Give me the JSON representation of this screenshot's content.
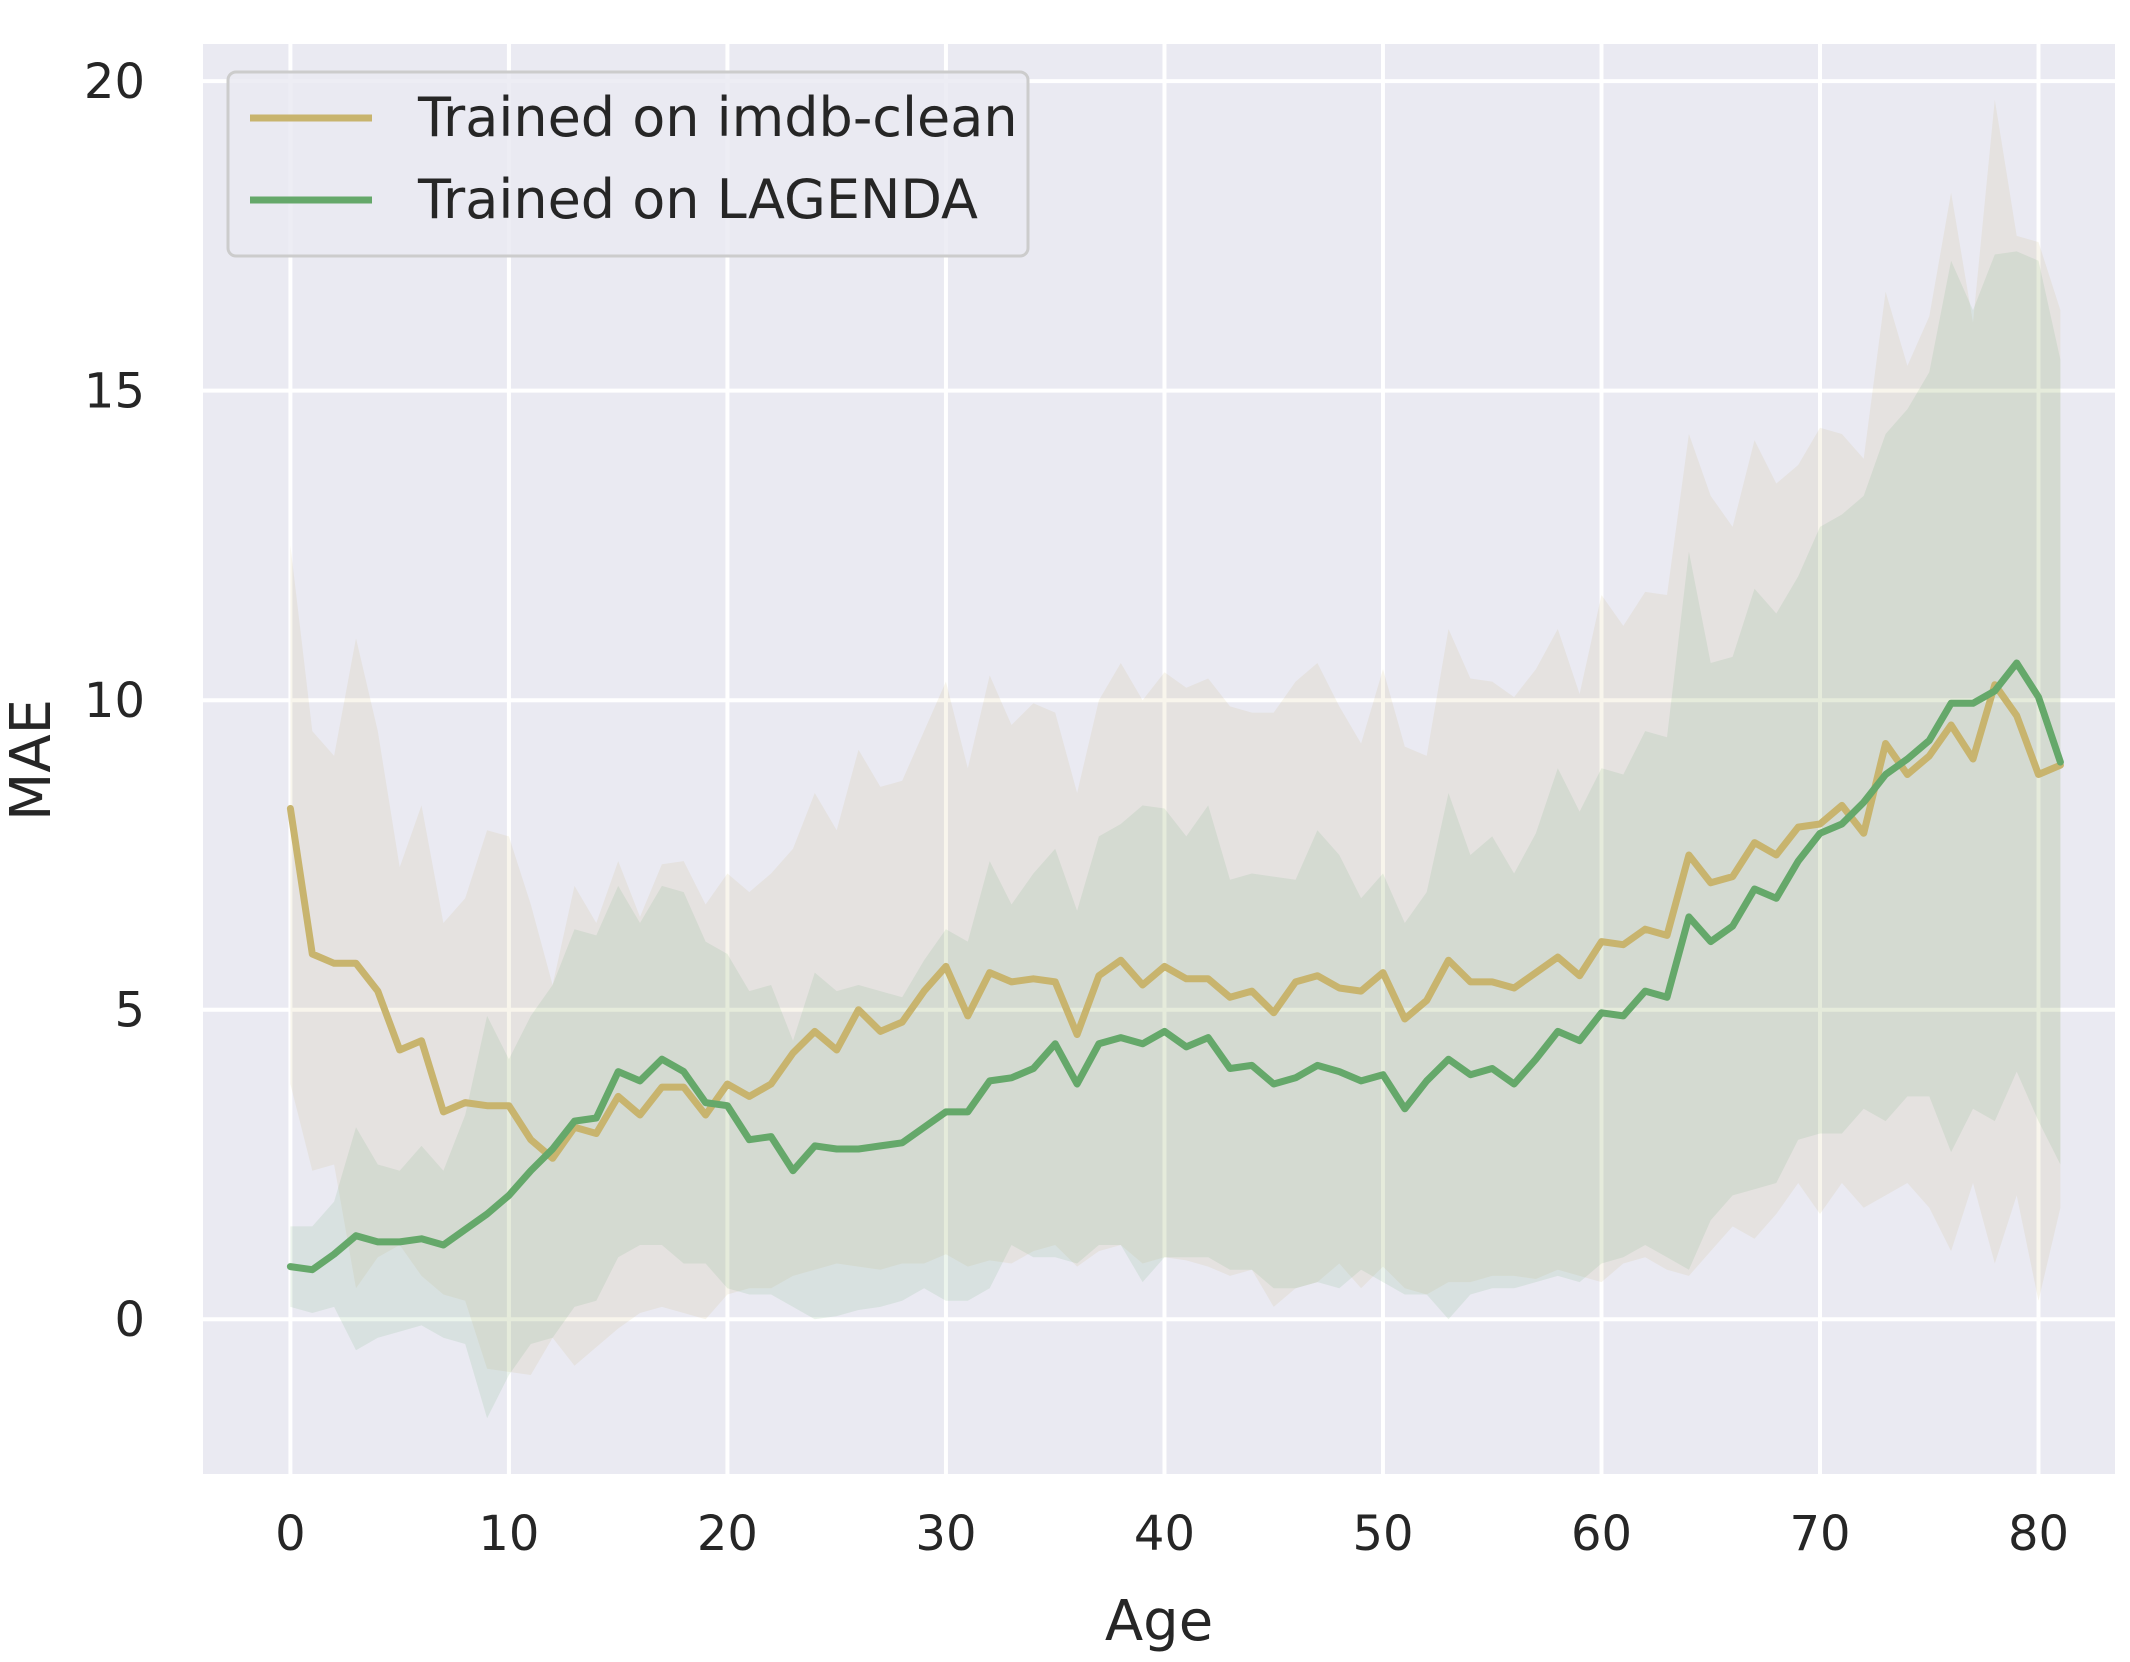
{
  "chart_data": {
    "type": "line",
    "xlabel": "Age",
    "ylabel": "MAE",
    "xlim": [
      -4,
      83.5
    ],
    "ylim": [
      -2.5,
      20.6
    ],
    "xticks": [
      0,
      10,
      20,
      30,
      40,
      50,
      60,
      70,
      80
    ],
    "yticks": [
      0,
      5,
      10,
      15,
      20
    ],
    "grid": true,
    "legend_position": "top-left",
    "series": [
      {
        "name": "Trained on imdb-clean",
        "color": "#c8b46e",
        "x": [
          0,
          1,
          2,
          3,
          4,
          5,
          6,
          7,
          8,
          9,
          10,
          11,
          12,
          13,
          14,
          15,
          16,
          17,
          18,
          19,
          20,
          21,
          22,
          23,
          24,
          25,
          26,
          27,
          28,
          29,
          30,
          31,
          32,
          33,
          34,
          35,
          36,
          37,
          38,
          39,
          40,
          41,
          42,
          43,
          44,
          45,
          46,
          47,
          48,
          49,
          50,
          51,
          52,
          53,
          54,
          55,
          56,
          57,
          58,
          59,
          60,
          61,
          62,
          63,
          64,
          65,
          66,
          67,
          68,
          69,
          70,
          71,
          72,
          73,
          74,
          75,
          76,
          77,
          78,
          79,
          80,
          81
        ],
        "values": [
          8.25,
          5.9,
          5.75,
          5.75,
          5.3,
          4.35,
          4.5,
          3.35,
          3.5,
          3.45,
          3.45,
          2.9,
          2.6,
          3.1,
          3.0,
          3.6,
          3.3,
          3.75,
          3.75,
          3.3,
          3.8,
          3.6,
          3.8,
          4.3,
          4.65,
          4.35,
          5.0,
          4.65,
          4.8,
          5.3,
          5.7,
          4.9,
          5.6,
          5.45,
          5.5,
          5.45,
          4.6,
          5.55,
          5.8,
          5.4,
          5.7,
          5.5,
          5.5,
          5.2,
          5.3,
          4.95,
          5.45,
          5.55,
          5.35,
          5.3,
          5.6,
          4.85,
          5.15,
          5.8,
          5.45,
          5.45,
          5.35,
          5.6,
          5.85,
          5.55,
          6.1,
          6.05,
          6.3,
          6.2,
          7.5,
          7.05,
          7.15,
          7.7,
          7.5,
          7.95,
          8.0,
          8.3,
          7.85,
          9.3,
          8.8,
          9.1,
          9.6,
          9.05,
          10.25,
          9.75,
          8.8,
          8.95
        ],
        "lower": [
          3.8,
          2.4,
          2.5,
          0.5,
          1.0,
          1.2,
          0.7,
          0.4,
          0.3,
          -0.8,
          -0.85,
          -0.9,
          -0.3,
          -0.75,
          -0.45,
          -0.15,
          0.1,
          0.2,
          0.1,
          0.0,
          0.4,
          0.5,
          0.5,
          0.7,
          0.8,
          0.9,
          0.85,
          0.8,
          0.9,
          0.9,
          1.05,
          0.85,
          0.95,
          0.9,
          1.1,
          1.2,
          0.85,
          1.1,
          1.2,
          0.9,
          1.0,
          0.95,
          0.85,
          0.7,
          0.8,
          0.2,
          0.5,
          0.6,
          0.9,
          0.5,
          0.85,
          0.5,
          0.4,
          0.6,
          0.6,
          0.7,
          0.7,
          0.65,
          0.8,
          0.7,
          0.6,
          0.9,
          1.0,
          0.8,
          0.7,
          1.1,
          1.5,
          1.3,
          1.7,
          2.2,
          1.7,
          2.2,
          1.8,
          2.0,
          2.2,
          1.8,
          1.1,
          2.2,
          0.9,
          2.0,
          0.3,
          1.8
        ],
        "upper": [
          12.5,
          9.5,
          9.1,
          11.0,
          9.5,
          7.3,
          8.3,
          6.4,
          6.8,
          7.9,
          7.8,
          6.7,
          5.4,
          7.0,
          6.4,
          7.4,
          6.5,
          7.35,
          7.4,
          6.7,
          7.2,
          6.9,
          7.2,
          7.6,
          8.5,
          7.9,
          9.2,
          8.6,
          8.7,
          9.5,
          10.3,
          8.9,
          10.4,
          9.6,
          9.95,
          9.8,
          8.5,
          10.0,
          10.6,
          10.0,
          10.45,
          10.2,
          10.35,
          9.9,
          9.8,
          9.8,
          10.3,
          10.6,
          9.9,
          9.3,
          10.5,
          9.25,
          9.1,
          11.15,
          10.35,
          10.3,
          10.05,
          10.5,
          11.15,
          10.1,
          11.7,
          11.2,
          11.75,
          11.7,
          14.3,
          13.3,
          12.8,
          14.2,
          13.5,
          13.8,
          14.4,
          14.3,
          13.9,
          16.6,
          15.4,
          16.2,
          18.2,
          16.1,
          19.7,
          17.5,
          17.4,
          16.3
        ]
      },
      {
        "name": "Trained on LAGENDA",
        "color": "#65a86a",
        "x": [
          0,
          1,
          2,
          3,
          4,
          5,
          6,
          7,
          8,
          9,
          10,
          11,
          12,
          13,
          14,
          15,
          16,
          17,
          18,
          19,
          20,
          21,
          22,
          23,
          24,
          25,
          26,
          27,
          28,
          29,
          30,
          31,
          32,
          33,
          34,
          35,
          36,
          37,
          38,
          39,
          40,
          41,
          42,
          43,
          44,
          45,
          46,
          47,
          48,
          49,
          50,
          51,
          52,
          53,
          54,
          55,
          56,
          57,
          58,
          59,
          60,
          61,
          62,
          63,
          64,
          65,
          66,
          67,
          68,
          69,
          70,
          71,
          72,
          73,
          74,
          75,
          76,
          77,
          78,
          79,
          80,
          81
        ],
        "values": [
          0.85,
          0.8,
          1.05,
          1.35,
          1.25,
          1.25,
          1.3,
          1.2,
          1.45,
          1.7,
          2.0,
          2.4,
          2.75,
          3.2,
          3.25,
          4.0,
          3.85,
          4.2,
          4.0,
          3.5,
          3.45,
          2.9,
          2.95,
          2.4,
          2.8,
          2.75,
          2.75,
          2.8,
          2.85,
          3.1,
          3.35,
          3.35,
          3.85,
          3.9,
          4.05,
          4.45,
          3.8,
          4.45,
          4.55,
          4.45,
          4.65,
          4.4,
          4.55,
          4.05,
          4.1,
          3.8,
          3.9,
          4.1,
          4.0,
          3.85,
          3.95,
          3.4,
          3.85,
          4.2,
          3.95,
          4.05,
          3.8,
          4.2,
          4.65,
          4.5,
          4.95,
          4.9,
          5.3,
          5.2,
          6.5,
          6.1,
          6.35,
          6.95,
          6.8,
          7.4,
          7.85,
          8.0,
          8.35,
          8.8,
          9.05,
          9.35,
          9.95,
          9.95,
          10.15,
          10.6,
          10.05,
          9.0
        ],
        "lower": [
          0.2,
          0.1,
          0.2,
          -0.5,
          -0.3,
          -0.2,
          -0.1,
          -0.3,
          -0.4,
          -1.6,
          -0.9,
          -0.4,
          -0.3,
          0.2,
          0.3,
          1.0,
          1.2,
          1.2,
          0.9,
          0.9,
          0.5,
          0.4,
          0.4,
          0.2,
          0.0,
          0.05,
          0.15,
          0.2,
          0.3,
          0.5,
          0.3,
          0.3,
          0.5,
          1.2,
          1.0,
          1.0,
          0.9,
          1.2,
          1.2,
          0.6,
          1.0,
          1.0,
          1.0,
          0.8,
          0.8,
          0.5,
          0.5,
          0.6,
          0.5,
          0.8,
          0.6,
          0.4,
          0.4,
          0.0,
          0.4,
          0.5,
          0.5,
          0.6,
          0.7,
          0.6,
          0.9,
          1.0,
          1.2,
          1.0,
          0.8,
          1.6,
          2.0,
          2.1,
          2.2,
          2.9,
          3.0,
          3.0,
          3.4,
          3.2,
          3.6,
          3.6,
          2.7,
          3.4,
          3.2,
          4.0,
          3.2,
          2.5
        ],
        "upper": [
          1.5,
          1.5,
          1.9,
          3.1,
          2.5,
          2.4,
          2.8,
          2.4,
          3.3,
          4.9,
          4.2,
          4.9,
          5.4,
          6.3,
          6.2,
          7.0,
          6.4,
          7.0,
          6.9,
          6.1,
          5.9,
          5.3,
          5.4,
          4.5,
          5.6,
          5.3,
          5.4,
          5.3,
          5.2,
          5.8,
          6.3,
          6.1,
          7.4,
          6.7,
          7.2,
          7.6,
          6.6,
          7.8,
          8.0,
          8.3,
          8.25,
          7.8,
          8.3,
          7.1,
          7.2,
          7.15,
          7.1,
          7.9,
          7.5,
          6.8,
          7.2,
          6.4,
          6.9,
          8.5,
          7.5,
          7.8,
          7.2,
          7.85,
          8.9,
          8.2,
          8.9,
          8.8,
          9.5,
          9.4,
          12.4,
          10.6,
          10.7,
          11.8,
          11.4,
          12.0,
          12.8,
          13.0,
          13.3,
          14.3,
          14.7,
          15.3,
          17.1,
          16.3,
          17.2,
          17.25,
          17.1,
          15.5
        ]
      }
    ]
  }
}
